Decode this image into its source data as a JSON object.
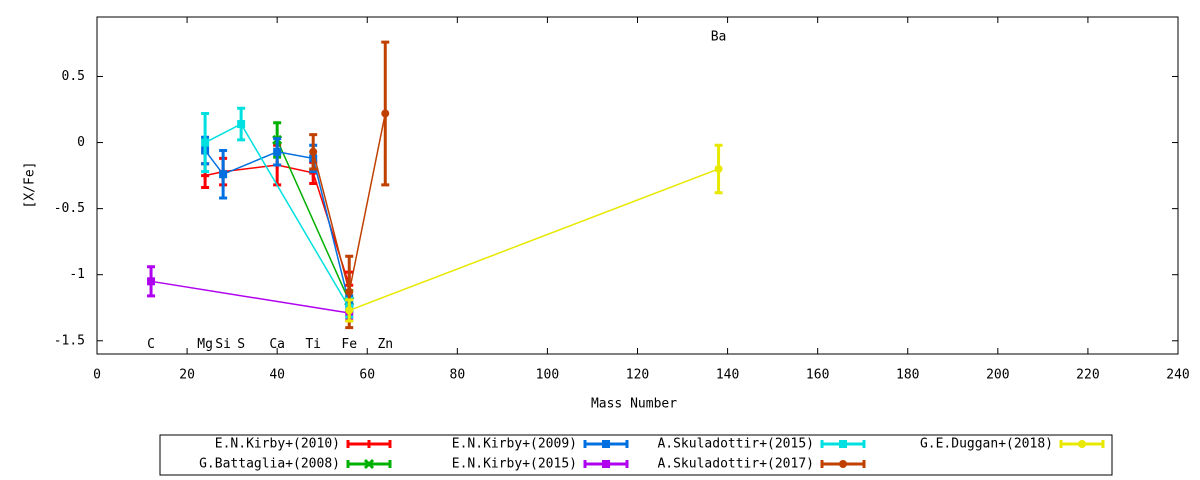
{
  "chart_data": {
    "type": "errorbar-line",
    "xlabel": "Mass Number",
    "ylabel": "[X/Fe]",
    "xlim": [
      0,
      240
    ],
    "ylim": [
      -1.6,
      0.95
    ],
    "xticks": [
      0,
      20,
      40,
      60,
      80,
      100,
      120,
      140,
      160,
      180,
      200,
      220,
      240
    ],
    "yticks": [
      0.5,
      0,
      -0.5,
      -1,
      -1.5
    ],
    "annotations": [
      {
        "text": "C",
        "x": 12,
        "y": -1.53
      },
      {
        "text": "Mg",
        "x": 24,
        "y": -1.53
      },
      {
        "text": "Si",
        "x": 28,
        "y": -1.53
      },
      {
        "text": "S",
        "x": 32,
        "y": -1.53
      },
      {
        "text": "Ca",
        "x": 40,
        "y": -1.53
      },
      {
        "text": "Ti",
        "x": 48,
        "y": -1.53
      },
      {
        "text": "Fe",
        "x": 56,
        "y": -1.53
      },
      {
        "text": "Zn",
        "x": 64,
        "y": -1.53
      },
      {
        "text": "Ba",
        "x": 138,
        "y": 0.8
      }
    ],
    "series": [
      {
        "name": "E.N.Kirby+(2010)",
        "color": "#ff0000",
        "marker": "plus",
        "x": [
          24,
          28,
          40,
          48,
          56
        ],
        "y": [
          -0.25,
          -0.22,
          -0.17,
          -0.23,
          -1.08
        ],
        "yerr": [
          0.09,
          0.1,
          0.15,
          0.08,
          0.1
        ]
      },
      {
        "name": "G.Battaglia+(2008)",
        "color": "#00b000",
        "marker": "cross",
        "x": [
          40,
          56
        ],
        "y": [
          0.02,
          -1.2
        ],
        "yerr": [
          0.13,
          0.08
        ]
      },
      {
        "name": "E.N.Kirby+(2009)",
        "color": "#0070e0",
        "marker": "square",
        "x": [
          24,
          28,
          40,
          48,
          56
        ],
        "y": [
          -0.06,
          -0.24,
          -0.07,
          -0.12,
          -1.22
        ],
        "yerr": [
          0.1,
          0.18,
          0.1,
          0.1,
          0.06
        ]
      },
      {
        "name": "E.N.Kirby+(2015)",
        "color": "#b000f0",
        "marker": "square",
        "x": [
          12,
          56
        ],
        "y": [
          -1.05,
          -1.29
        ],
        "yerr": [
          0.11,
          0.05
        ]
      },
      {
        "name": "A.Skuladottir+(2015)",
        "color": "#00e0e0",
        "marker": "square",
        "x": [
          24,
          32,
          56
        ],
        "y": [
          0.0,
          0.14,
          -1.25
        ],
        "yerr": [
          0.22,
          0.12,
          0.07
        ]
      },
      {
        "name": "A.Skuladottir+(2017)",
        "color": "#c04000",
        "marker": "circle",
        "x": [
          48,
          56,
          64
        ],
        "y": [
          -0.07,
          -1.13,
          0.22
        ],
        "yerr": [
          0.13,
          0.27,
          0.54
        ]
      },
      {
        "name": "G.E.Duggan+(2018)",
        "color": "#e8e800",
        "marker": "circle",
        "x": [
          56,
          138
        ],
        "y": [
          -1.27,
          -0.2
        ],
        "yerr": [
          0.08,
          0.18
        ]
      }
    ]
  }
}
